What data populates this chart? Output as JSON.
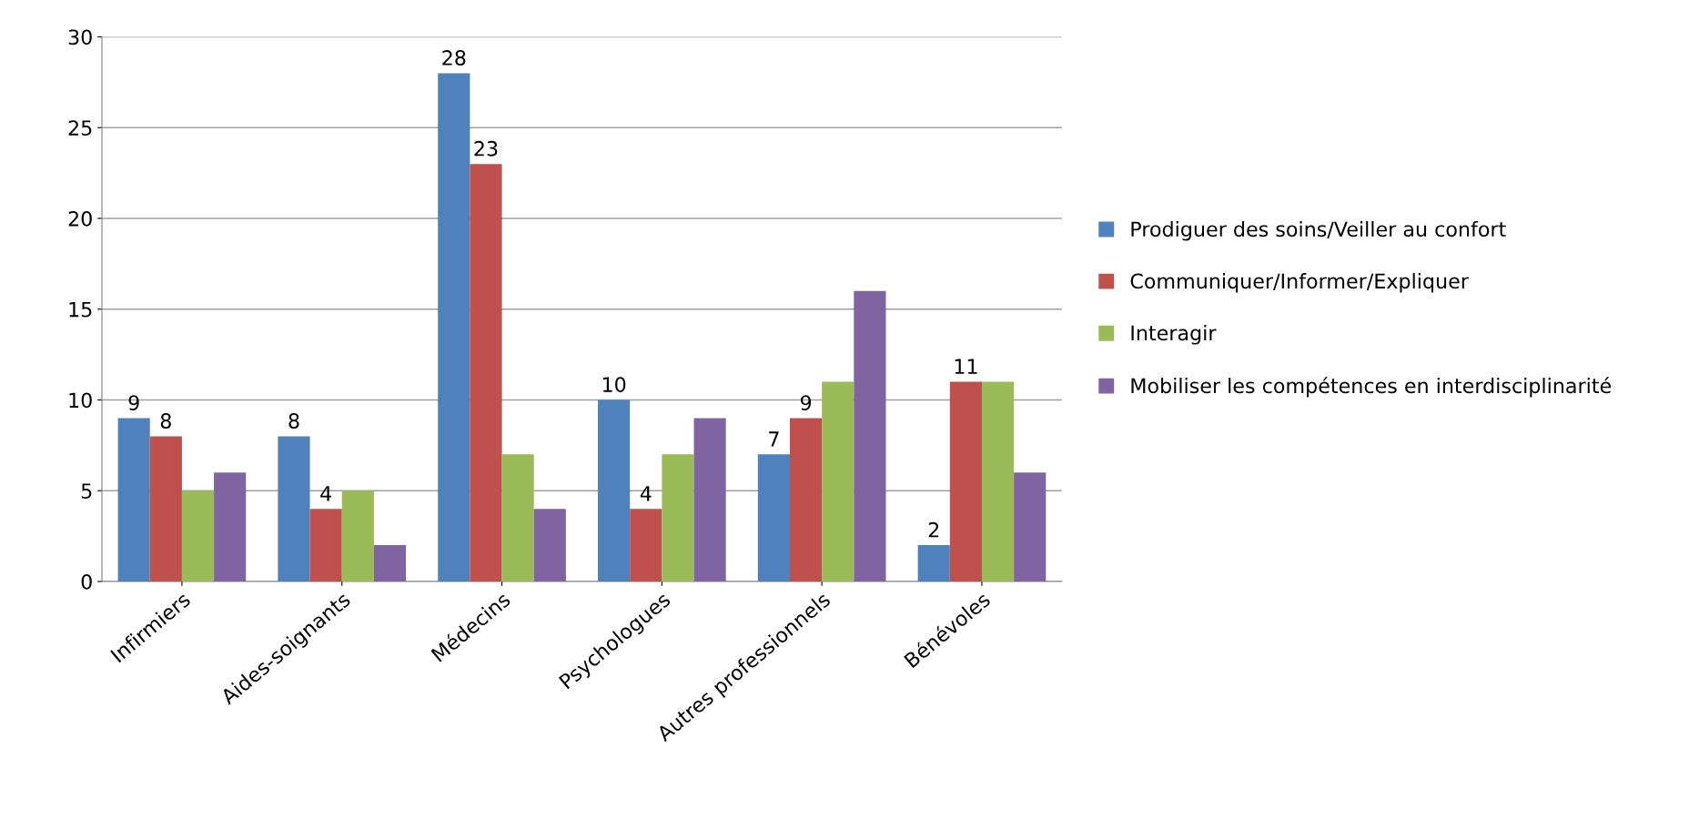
{
  "chart_data": {
    "type": "bar",
    "categories": [
      "Infirmiers",
      "Aides-soignants",
      "Médecins",
      "Psychologues",
      "Autres professionnels",
      "Bénévoles"
    ],
    "series": [
      {
        "name": "Prodiguer des soins/Veiller au confort",
        "color": "#4f81bd",
        "values": [
          9,
          8,
          28,
          10,
          7,
          2
        ],
        "value_labels": [
          "9",
          "8",
          "28",
          "10",
          "7",
          "2"
        ]
      },
      {
        "name": "Communiquer/Informer/Expliquer",
        "color": "#c0504d",
        "values": [
          8,
          4,
          23,
          4,
          9,
          11
        ],
        "value_labels": [
          "8",
          "4",
          "23",
          "4",
          "9",
          "11"
        ]
      },
      {
        "name": "Interagir",
        "color": "#9bbb59",
        "values": [
          5,
          5,
          7,
          7,
          11,
          11
        ]
      },
      {
        "name": "Mobiliser les compétences en interdisciplinarité",
        "color": "#8064a2",
        "values": [
          6,
          2,
          4,
          9,
          16,
          6
        ]
      }
    ],
    "ylim": [
      0,
      30
    ],
    "yticks": [
      0,
      5,
      10,
      15,
      20,
      25,
      30
    ],
    "grid": "y",
    "legend": "right"
  }
}
